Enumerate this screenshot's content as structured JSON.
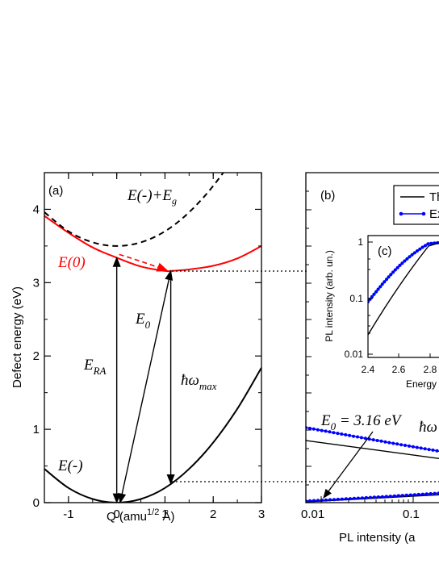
{
  "chart_data": [
    {
      "panel": "(a)",
      "type": "line",
      "xlabel": "Q (amu",
      "xlabel_sup": "1/2",
      "xlabel_unit": " Å)",
      "ylabel": "Defect energy (eV)",
      "xlim": [
        -1.5,
        3.0
      ],
      "ylim": [
        0,
        4.5
      ],
      "xticks": [
        "-1",
        "0",
        "1",
        "2",
        "3"
      ],
      "yticks": [
        "0",
        "1",
        "2",
        "3",
        "4"
      ],
      "grid": false,
      "series": [
        {
          "name": "E(-)",
          "color": "#000000",
          "dash": "solid",
          "x": [
            -1.5,
            -1.0,
            -0.5,
            0.0,
            0.5,
            1.0,
            1.5,
            2.0,
            2.5,
            3.0
          ],
          "y": [
            0.46,
            0.2,
            0.05,
            0.0,
            0.05,
            0.2,
            0.46,
            0.82,
            1.28,
            1.84
          ]
        },
        {
          "name": "E(0)",
          "color": "#ff0000",
          "dash": "solid",
          "x": [
            -1.5,
            -1.0,
            -0.5,
            0.0,
            0.5,
            1.0,
            1.12,
            1.5,
            2.0,
            2.5,
            3.0
          ],
          "y": [
            3.91,
            3.68,
            3.48,
            3.34,
            3.22,
            3.16,
            3.16,
            3.18,
            3.23,
            3.33,
            3.5
          ]
        },
        {
          "name": "E(-)+E",
          "color": "#000000",
          "dash": "dashed",
          "x": [
            -1.5,
            -1.0,
            -0.5,
            0.0,
            0.5,
            1.0,
            1.5,
            2.0,
            2.5,
            3.0
          ],
          "y": [
            3.96,
            3.7,
            3.55,
            3.5,
            3.55,
            3.7,
            3.96,
            4.32,
            4.78,
            5.34
          ]
        }
      ],
      "arrows": [
        {
          "label": "E",
          "sub": "RA",
          "from": [
            0.0,
            0.0
          ],
          "to": [
            0.0,
            3.34
          ]
        },
        {
          "label": "E",
          "sub": "0",
          "from": [
            1.12,
            3.16
          ],
          "to": [
            0.07,
            0.0
          ]
        },
        {
          "label": "ħω",
          "sub": "max",
          "from": [
            1.12,
            3.16
          ],
          "to": [
            1.12,
            0.26
          ]
        }
      ],
      "annotations": [
        "(a)",
        "E(-)",
        "E(0)",
        "E(-)+E",
        "g"
      ]
    },
    {
      "panel": "(b)",
      "type": "line",
      "xlabel": "PL intensity (a",
      "xscale": "log",
      "xticks": [
        "0.01",
        "0.1"
      ],
      "legend": {
        "placement": "top-right",
        "entries": [
          "Th",
          "Ex"
        ]
      },
      "series": [
        {
          "name": "Th",
          "color": "#000000",
          "x": [
            0.009,
            0.1,
            0.32
          ],
          "y": [
            0.84,
            0.62,
            0.53
          ]
        },
        {
          "name": "Ex",
          "color": "#0000ff",
          "x": [
            0.009,
            0.1,
            0.32
          ],
          "y": [
            1.02,
            0.73,
            0.63
          ]
        },
        {
          "name": "Th",
          "color": "#000000",
          "x": [
            0.009,
            0.1,
            0.32
          ],
          "y": [
            0.0,
            0.06,
            0.08
          ]
        },
        {
          "name": "Ex",
          "color": "#0000ff",
          "x": [
            0.009,
            0.1,
            0.32
          ],
          "y": [
            0.01,
            0.08,
            0.1
          ]
        }
      ],
      "annotations": [
        "(b)",
        "E",
        "0",
        " = 3.16 eV",
        "ħω"
      ]
    },
    {
      "panel": "(c)",
      "type": "line",
      "xlabel": "Energy",
      "ylabel": "PL intensity (arb. un.)",
      "yscale": "log",
      "xticks": [
        "2.4",
        "2.6",
        "2.8"
      ],
      "yticks": [
        "0.01",
        "0.1",
        "1"
      ],
      "series": [
        {
          "name": "Th",
          "color": "#000000",
          "x": [
            2.4,
            2.5,
            2.6,
            2.7,
            2.8
          ],
          "y": [
            0.022,
            0.065,
            0.17,
            0.42,
            0.9
          ]
        },
        {
          "name": "Ex",
          "color": "#0000ff",
          "x": [
            2.4,
            2.5,
            2.6,
            2.7,
            2.8
          ],
          "y": [
            0.09,
            0.2,
            0.4,
            0.72,
            1.0
          ]
        }
      ],
      "annotations": [
        "(c)"
      ]
    }
  ]
}
